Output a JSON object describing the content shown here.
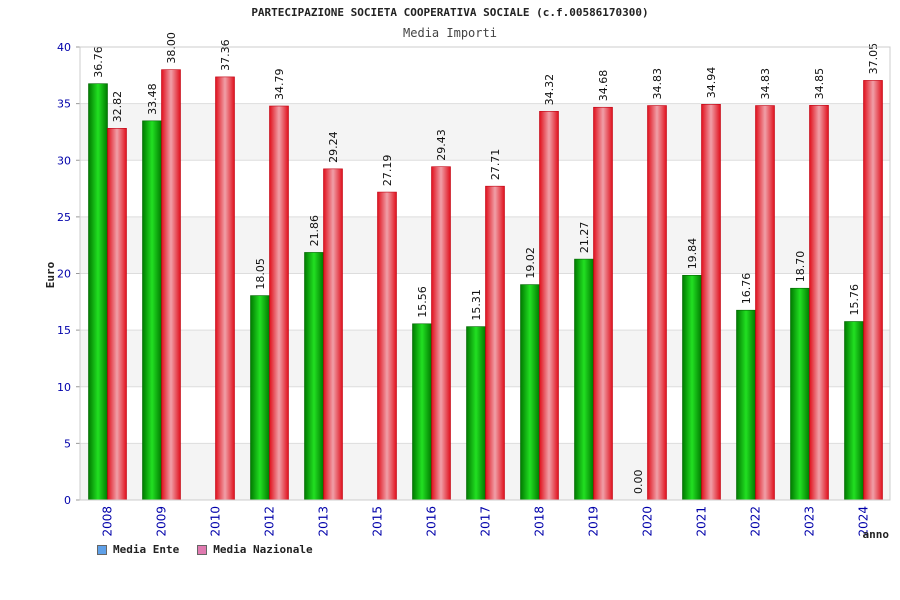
{
  "chart_data": {
    "type": "bar",
    "title": "PARTECIPAZIONE SOCIETA COOPERATIVA SOCIALE (c.f.00586170300)",
    "subtitle": "Media Importi",
    "xlabel": "anno",
    "ylabel": "Euro",
    "ylim": [
      0,
      40
    ],
    "yticks": [
      0,
      5,
      10,
      15,
      20,
      25,
      30,
      35,
      40
    ],
    "categories": [
      "2008",
      "2009",
      "2010",
      "2012",
      "2013",
      "2015",
      "2016",
      "2017",
      "2018",
      "2019",
      "2020",
      "2021",
      "2022",
      "2023",
      "2024"
    ],
    "series": [
      {
        "name": "Media Ente",
        "values": [
          36.76,
          33.48,
          null,
          18.05,
          21.86,
          null,
          15.56,
          15.31,
          19.02,
          21.27,
          0.0,
          19.84,
          16.76,
          18.7,
          15.76
        ],
        "labels": [
          "36.76",
          "33.48",
          null,
          "18.05",
          "21.86",
          null,
          "15.56",
          "15.31",
          "19.02",
          "21.27",
          "0.00",
          "19.84",
          "16.76",
          "18.70",
          "15.76"
        ]
      },
      {
        "name": "Media Nazionale",
        "values": [
          32.82,
          38.0,
          37.36,
          34.79,
          29.24,
          27.19,
          29.43,
          27.71,
          34.32,
          34.68,
          34.83,
          34.94,
          34.83,
          34.85,
          37.05
        ],
        "labels": [
          "32.82",
          "38.00",
          "37.36",
          "34.79",
          "29.24",
          "27.19",
          "29.43",
          "27.71",
          "34.32",
          "34.68",
          "34.83",
          "34.94",
          "34.83",
          "34.85",
          "37.05"
        ]
      }
    ],
    "legend_position": "bottom-left"
  },
  "legend": {
    "items": [
      {
        "label": "Media Ente",
        "color": "#5fa0e8"
      },
      {
        "label": "Media Nazionale",
        "color": "#e07ab0"
      }
    ]
  },
  "colors": {
    "ente_dark": "#007a00",
    "ente_light": "#22e022",
    "naz_dark": "#e0101c",
    "naz_light": "#f0a0a8",
    "axis_text": "#0000aa"
  }
}
